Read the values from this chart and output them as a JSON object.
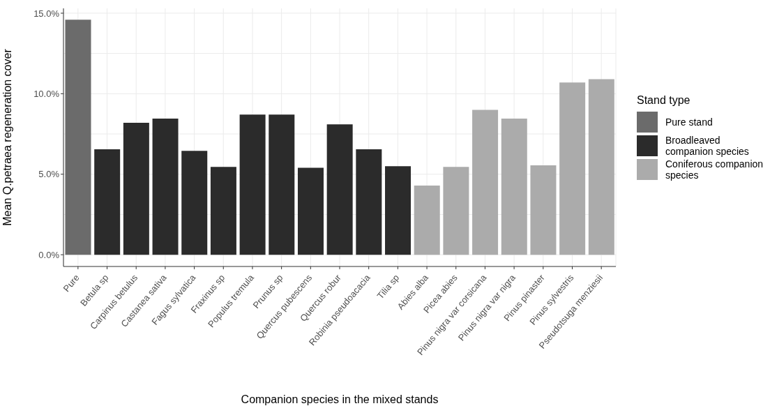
{
  "chart_data": {
    "type": "bar",
    "xlabel": "Companion species in the mixed stands",
    "ylabel": "Mean Q.petraea regeneration cover",
    "legend_title": "Stand type",
    "categories": [
      "Pure",
      "Betula sp",
      "Carpinus betulus",
      "Castanea sativa",
      "Fagus sylvatica",
      "Fraxinus sp",
      "Populus tremula",
      "Prunus sp",
      "Quercus pubescens",
      "Quercus robur",
      "Robinia pseudoacacia",
      "Tilia sp",
      "Abies alba",
      "Picea abies",
      "Pinus nigra var corsicana",
      "Pinus nigra var nigra",
      "Pinus pinaster",
      "Pinus sylvestris",
      "Pseudotsuga menziesii"
    ],
    "series": [
      {
        "name": "Pure stand",
        "color": "#6b6b6b",
        "values": [
          14.6,
          null,
          null,
          null,
          null,
          null,
          null,
          null,
          null,
          null,
          null,
          null,
          null,
          null,
          null,
          null,
          null,
          null,
          null
        ]
      },
      {
        "name": "Broadleaved companion species",
        "color": "#2b2b2b",
        "values": [
          null,
          6.55,
          8.2,
          8.45,
          6.45,
          5.45,
          8.7,
          8.7,
          5.4,
          8.1,
          6.55,
          5.5,
          null,
          null,
          null,
          null,
          null,
          null,
          null
        ]
      },
      {
        "name": "Coniferous companion species",
        "color": "#ababab",
        "values": [
          null,
          null,
          null,
          null,
          null,
          null,
          null,
          null,
          null,
          null,
          null,
          null,
          4.3,
          5.45,
          9.0,
          8.45,
          5.55,
          10.7,
          10.9
        ]
      }
    ],
    "stacked": true,
    "ylim": [
      -0.73,
      15.3
    ],
    "yticks": [
      {
        "value": 0,
        "label": "0.0%"
      },
      {
        "value": 5,
        "label": "5.0%"
      },
      {
        "value": 10,
        "label": "10.0%"
      },
      {
        "value": 15,
        "label": "15.0%"
      }
    ],
    "grid": true,
    "legend": "right"
  }
}
